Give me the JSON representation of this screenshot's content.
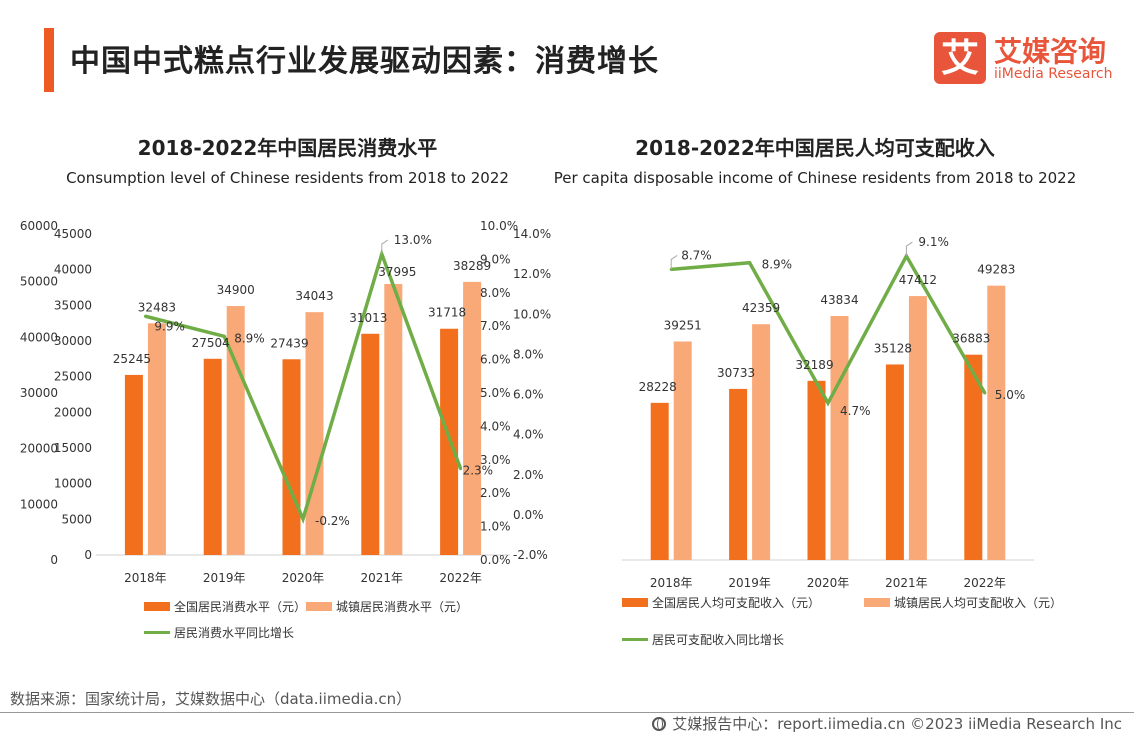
{
  "header": {
    "title": "中国中式糕点行业发展驱动因素：消费增长",
    "logo_mark": "艾",
    "logo_cn": "艾媒咨询",
    "logo_en": "iiMedia Research"
  },
  "colors": {
    "accent": "#ee5a24",
    "national_bar": "#f26f1d",
    "urban_bar": "#f9a978",
    "growth_line": "#70ad47"
  },
  "chart_data": [
    {
      "type": "bar",
      "title": "2018-2022年中国居民消费水平",
      "subtitle": "Consumption level of Chinese residents from 2018 to 2022",
      "categories": [
        "2018年",
        "2019年",
        "2020年",
        "2021年",
        "2022年"
      ],
      "series": [
        {
          "name": "全国居民消费水平（元）",
          "kind": "bar",
          "axis": "left",
          "color": "#f26f1d",
          "values": [
            25245,
            27504,
            27439,
            31013,
            31718
          ]
        },
        {
          "name": "城镇居民消费水平（元）",
          "kind": "bar",
          "axis": "left",
          "color": "#f9a978",
          "values": [
            32483,
            34900,
            34043,
            37995,
            38289
          ]
        },
        {
          "name": "居民消费水平同比增长",
          "kind": "line",
          "axis": "right",
          "color": "#70ad47",
          "values": [
            9.9,
            8.9,
            -0.2,
            13.0,
            2.3
          ],
          "labels": [
            "9.9%",
            "8.9%",
            "-0.2%",
            "13.0%",
            "2.3%"
          ]
        }
      ],
      "ylim": [
        0,
        45000
      ],
      "yticks": [
        "0",
        "5000",
        "10000",
        "15000",
        "20000",
        "25000",
        "30000",
        "35000",
        "40000",
        "45000"
      ],
      "y2lim": [
        -2.0,
        14.0
      ],
      "y2ticks": [
        "-2.0%",
        "0.0%",
        "2.0%",
        "4.0%",
        "6.0%",
        "8.0%",
        "10.0%",
        "12.0%",
        "14.0%"
      ],
      "legend": "bottom",
      "grid": false
    },
    {
      "type": "bar",
      "title": "2018-2022年中国居民人均可支配收入",
      "subtitle": "Per capita disposable income of Chinese residents from 2018 to 2022",
      "categories": [
        "2018年",
        "2019年",
        "2020年",
        "2021年",
        "2022年"
      ],
      "series": [
        {
          "name": "全国居民人均可支配收入（元）",
          "kind": "bar",
          "axis": "left",
          "color": "#f26f1d",
          "values": [
            28228,
            30733,
            32189,
            35128,
            36883
          ]
        },
        {
          "name": "城镇居民人均可支配收入（元）",
          "kind": "bar",
          "axis": "left",
          "color": "#f9a978",
          "values": [
            39251,
            42359,
            43834,
            47412,
            49283
          ]
        },
        {
          "name": "居民可支配收入同比增长",
          "kind": "line",
          "axis": "right",
          "color": "#70ad47",
          "values": [
            8.7,
            8.9,
            4.7,
            9.1,
            5.0
          ],
          "labels": [
            "8.7%",
            "8.9%",
            "4.7%",
            "9.1%",
            "5.0%"
          ]
        }
      ],
      "ylim": [
        0,
        60000
      ],
      "yticks": [
        "0",
        "10000",
        "20000",
        "30000",
        "40000",
        "50000",
        "60000"
      ],
      "y2lim": [
        0.0,
        10.0
      ],
      "y2ticks": [
        "0.0%",
        "1.0%",
        "2.0%",
        "3.0%",
        "4.0%",
        "5.0%",
        "6.0%",
        "7.0%",
        "8.0%",
        "9.0%",
        "10.0%"
      ],
      "legend": "bottom",
      "grid": false
    }
  ],
  "source": "数据来源：国家统计局，艾媒数据中心（data.iimedia.cn）",
  "footer": "艾媒报告中心：report.iimedia.cn  ©2023  iiMedia Research  Inc"
}
